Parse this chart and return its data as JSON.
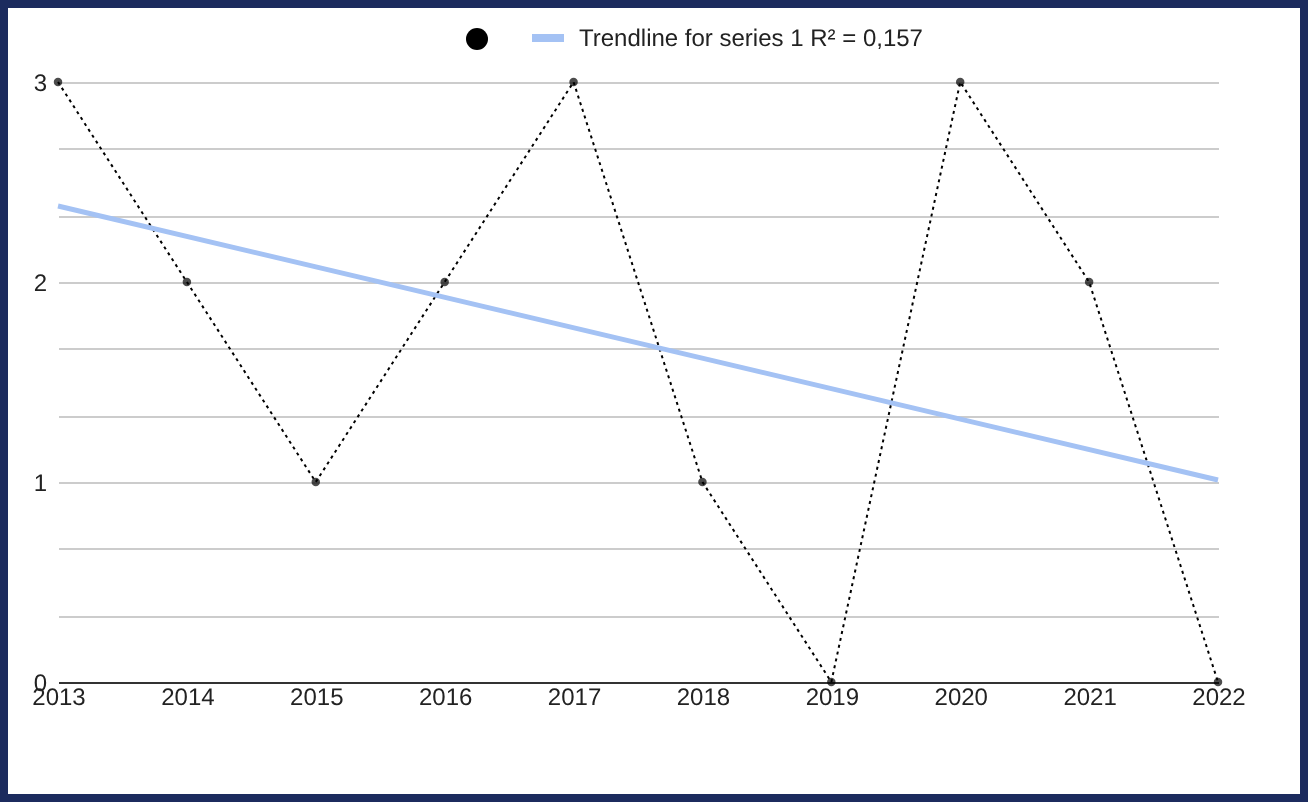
{
  "chart_data": {
    "type": "line",
    "x": [
      2013,
      2014,
      2015,
      2016,
      2017,
      2018,
      2019,
      2020,
      2021,
      2022
    ],
    "series": [
      {
        "color": "#000000",
        "values": [
          3,
          2,
          1,
          2,
          3,
          1,
          0,
          3,
          2,
          0
        ],
        "marker": "circle",
        "line_style": "dotted"
      },
      {
        "name": "Trendline for series 1 R² = 0,157",
        "color": "#a4c2f4",
        "x": [
          2013,
          2022
        ],
        "values": [
          2.38,
          1.01
        ],
        "marker": "none",
        "line_style": "solid"
      }
    ],
    "xlim": [
      2013,
      2022
    ],
    "xticks": [
      2013,
      2014,
      2015,
      2016,
      2017,
      2018,
      2019,
      2020,
      2021,
      2022
    ],
    "ylim": [
      0,
      3
    ],
    "yticks": [
      0,
      {
        "value": 0.33,
        "label": null
      },
      {
        "value": 0.67,
        "label": null
      },
      1,
      {
        "value": 1.33,
        "label": null
      },
      {
        "value": 1.67,
        "label": null
      },
      2,
      {
        "value": 2.33,
        "label": null
      },
      {
        "value": 2.67,
        "label": null
      },
      3
    ],
    "grid": "y",
    "legend": "top"
  }
}
